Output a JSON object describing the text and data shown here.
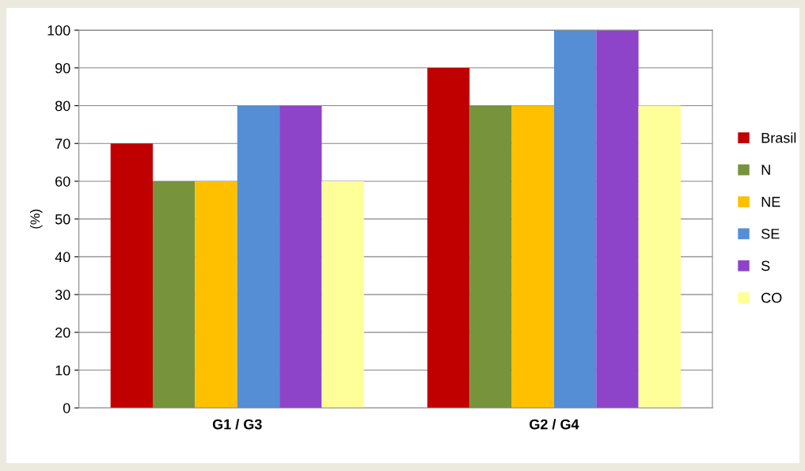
{
  "chart_data": {
    "type": "bar",
    "categories": [
      "G1 / G3",
      "G2 / G4"
    ],
    "ylabel": "(%)",
    "ylim": [
      0,
      100
    ],
    "yticks": [
      0,
      10,
      20,
      30,
      40,
      50,
      60,
      70,
      80,
      90,
      100
    ],
    "grid": "y",
    "legend": "right",
    "series": [
      {
        "name": "Brasil",
        "color": "#c00000",
        "values": [
          70,
          90
        ]
      },
      {
        "name": "N",
        "color": "#77933c",
        "values": [
          60,
          80
        ]
      },
      {
        "name": "NE",
        "color": "#ffc000",
        "values": [
          60,
          80
        ]
      },
      {
        "name": "SE",
        "color": "#558ed5",
        "values": [
          80,
          100
        ]
      },
      {
        "name": "S",
        "color": "#8e44c8",
        "values": [
          80,
          100
        ]
      },
      {
        "name": "CO",
        "color": "#ffff99",
        "values": [
          60,
          80
        ]
      }
    ]
  }
}
